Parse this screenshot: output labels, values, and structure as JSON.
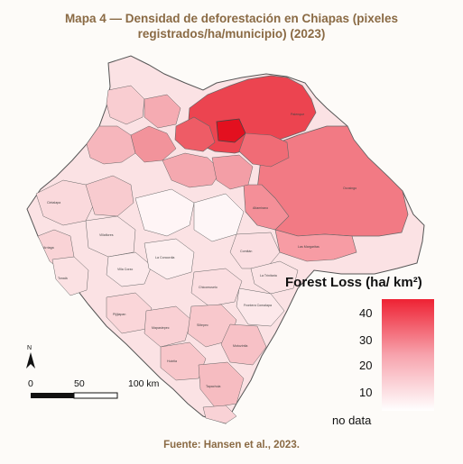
{
  "title_line1": "Mapa 4 — Densidad de deforestación en Chiapas (pixeles",
  "title_line2": "registrados/ha/municipio) (2023)",
  "legend": {
    "title": "Forest Loss (ha/ km²)",
    "ticks": [
      "40",
      "30",
      "20",
      "10"
    ],
    "no_data": "no data",
    "colors": {
      "high": "#ee2233",
      "mid": "#f7a3ad",
      "low": "#ffffff"
    }
  },
  "scale_bar": {
    "labels": [
      "0",
      "50",
      "100 km"
    ]
  },
  "north_arrow": {
    "label": "N"
  },
  "municipality_labels": [
    "Palenque",
    "Ocosingo",
    "Altamirano",
    "Las Margaritas",
    "La Trinitaria",
    "Villaflores",
    "Villa Corzo",
    "La Concordia",
    "Frontera Comalapa",
    "Tapachula",
    "Huixtla",
    "Pijijiapan",
    "Tonalá",
    "Arriaga",
    "Cintalapa",
    "Motozintla",
    "Siltepec",
    "Mapastepec",
    "Chicomuselo",
    "Comitán"
  ],
  "source": "Fuente: Hansen et al., 2023."
}
